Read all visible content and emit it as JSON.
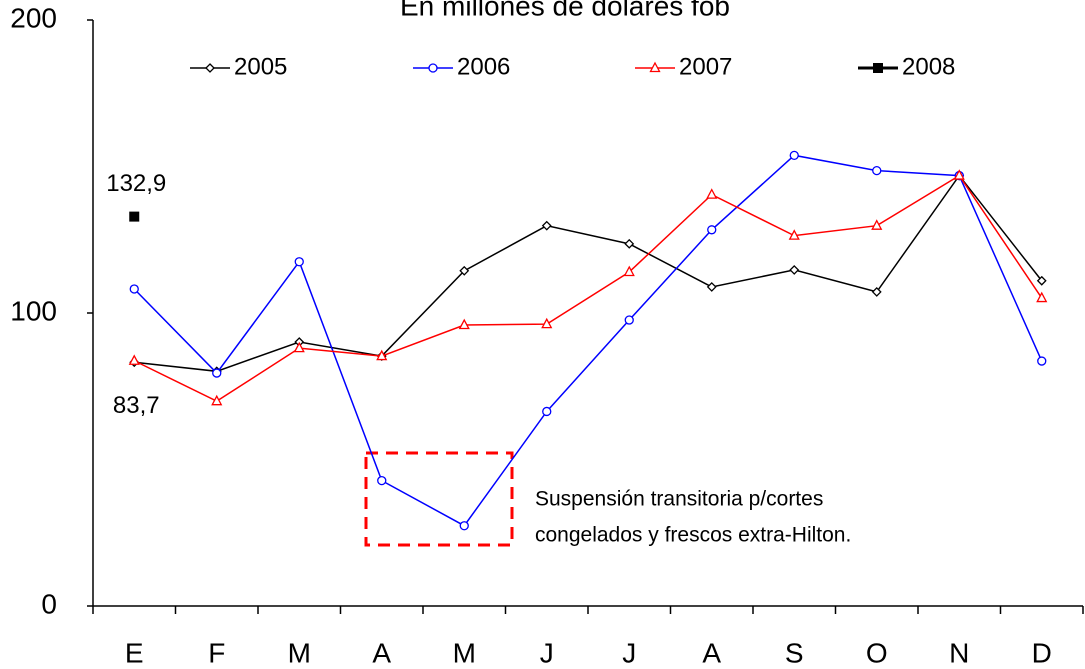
{
  "chart_data": {
    "type": "line",
    "title": "En millones de dólares fob",
    "categories": [
      "E",
      "F",
      "M",
      "A",
      "M",
      "J",
      "J",
      "A",
      "S",
      "O",
      "N",
      "D"
    ],
    "series": [
      {
        "name": "2005",
        "color": "#000000",
        "marker": "diamond",
        "values": [
          83.2,
          80.1,
          90.1,
          85.3,
          114.4,
          129.8,
          123.6,
          108.9,
          114.7,
          107.2,
          146.9,
          111
        ]
      },
      {
        "name": "2006",
        "color": "#0000ff",
        "marker": "circle",
        "values": [
          108.2,
          79.5,
          117.5,
          42.8,
          27.4,
          66.4,
          97.6,
          128.4,
          153.8,
          148.6,
          146.9,
          83.6
        ]
      },
      {
        "name": "2007",
        "color": "#ff0000",
        "marker": "triangle",
        "values": [
          83.7,
          69.9,
          88,
          85.3,
          95.9,
          96.2,
          114,
          140.4,
          126.4,
          129.8,
          146.9,
          105.1
        ],
        "value_labels": [
          "83,7",
          null,
          null,
          null,
          null,
          null,
          null,
          null,
          null,
          null,
          null,
          null
        ]
      },
      {
        "name": "2008",
        "color": "#000000",
        "marker": "square",
        "values": [
          132.9,
          null,
          null,
          null,
          null,
          null,
          null,
          null,
          null,
          null,
          null,
          null
        ],
        "value_labels": [
          "132,9",
          null,
          null,
          null,
          null,
          null,
          null,
          null,
          null,
          null,
          null,
          null
        ]
      }
    ],
    "annotations": [
      "Suspensión transitoria p/cortes",
      "congelados y frescos extra-Hilton."
    ],
    "ylim": [
      0,
      200
    ],
    "yticks": [
      0,
      100,
      200
    ],
    "grid": false,
    "legend": "top"
  }
}
